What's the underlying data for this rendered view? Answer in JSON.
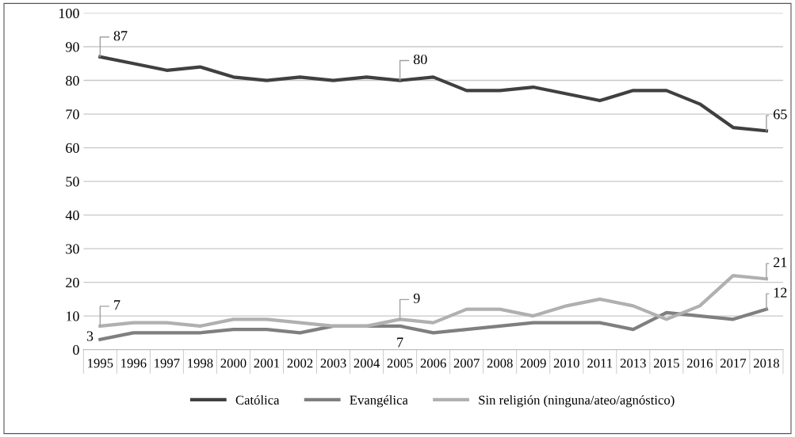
{
  "chart_data": {
    "type": "line",
    "categories": [
      "1995",
      "1996",
      "1997",
      "1998",
      "2000",
      "2001",
      "2002",
      "2003",
      "2004",
      "2005",
      "2006",
      "2007",
      "2008",
      "2009",
      "2010",
      "2011",
      "2013",
      "2015",
      "2016",
      "2017",
      "2018"
    ],
    "series": [
      {
        "name": "Católica",
        "color": "#404040",
        "values": [
          87,
          85,
          83,
          84,
          81,
          80,
          81,
          80,
          81,
          80,
          81,
          77,
          77,
          78,
          76,
          74,
          77,
          77,
          73,
          66,
          65
        ],
        "value_labels": [
          "87",
          null,
          null,
          null,
          null,
          null,
          null,
          null,
          null,
          "80",
          null,
          null,
          null,
          null,
          null,
          null,
          null,
          null,
          null,
          null,
          "65"
        ]
      },
      {
        "name": "Evangélica",
        "color": "#7f7f7f",
        "values": [
          3,
          5,
          5,
          5,
          6,
          6,
          5,
          7,
          7,
          7,
          5,
          6,
          7,
          8,
          8,
          8,
          6,
          11,
          10,
          9,
          12
        ],
        "value_labels": [
          "3",
          null,
          null,
          null,
          null,
          null,
          null,
          null,
          null,
          "7",
          null,
          null,
          null,
          null,
          null,
          null,
          null,
          null,
          null,
          null,
          "12"
        ]
      },
      {
        "name": "Sin religión (ninguna/ateo/agnóstico)",
        "color": "#b0b0b0",
        "values": [
          7,
          8,
          8,
          7,
          9,
          9,
          8,
          7,
          7,
          9,
          8,
          12,
          12,
          10,
          13,
          15,
          13,
          9,
          13,
          22,
          21
        ],
        "value_labels": [
          "7",
          null,
          null,
          null,
          null,
          null,
          null,
          null,
          null,
          "9",
          null,
          null,
          null,
          null,
          null,
          null,
          null,
          null,
          null,
          null,
          "21"
        ]
      }
    ],
    "ylim": [
      0,
      100
    ],
    "yticks": [
      0,
      10,
      20,
      30,
      40,
      50,
      60,
      70,
      80,
      90,
      100
    ],
    "grid": "y",
    "legend": "bottom",
    "marker": "none",
    "line_style": "solid"
  }
}
